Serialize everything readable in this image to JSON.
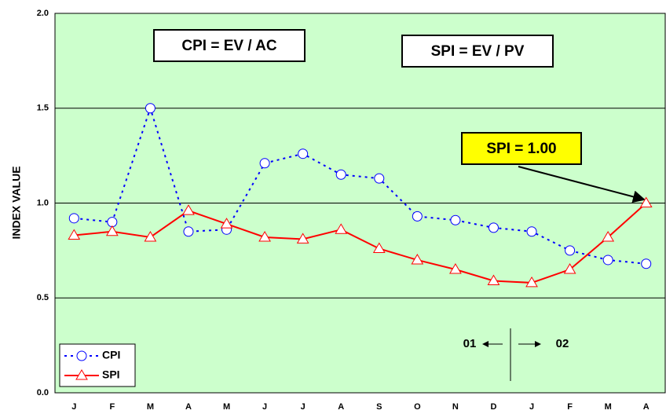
{
  "chart_data": {
    "type": "line",
    "y_label": "INDEX VALUE",
    "categories": [
      "J",
      "F",
      "M",
      "A",
      "M",
      "J",
      "J",
      "A",
      "S",
      "O",
      "N",
      "D",
      "J",
      "F",
      "M",
      "A"
    ],
    "series": [
      {
        "name": "CPI",
        "color": "#0000ff",
        "style": "dotted",
        "marker": "circle",
        "values": [
          0.92,
          0.9,
          1.5,
          0.85,
          0.86,
          1.21,
          1.26,
          1.15,
          1.13,
          0.93,
          0.91,
          0.87,
          0.85,
          0.75,
          0.7,
          0.68
        ]
      },
      {
        "name": "SPI",
        "color": "#ff0000",
        "style": "solid",
        "marker": "triangle",
        "values": [
          0.83,
          0.85,
          0.82,
          0.96,
          0.89,
          0.82,
          0.81,
          0.86,
          0.76,
          0.7,
          0.65,
          0.59,
          0.58,
          0.65,
          0.82,
          1.0
        ]
      }
    ],
    "ylim": [
      0,
      2
    ],
    "yticks": [
      {
        "value": 0,
        "label": "0.0"
      },
      {
        "value": 0.5,
        "label": "0.5"
      },
      {
        "value": 1,
        "label": "1.0"
      },
      {
        "value": 1.5,
        "label": "1.5"
      },
      {
        "value": 2,
        "label": "2.0"
      }
    ],
    "grid": true,
    "background": "#ccffcc",
    "legend": "lower left",
    "annotations": {
      "cpi_formula": "CPI = EV / AC",
      "spi_formula": "SPI = EV / PV",
      "spi_callout": "SPI = 1.00",
      "before": "01",
      "after": "02"
    }
  }
}
